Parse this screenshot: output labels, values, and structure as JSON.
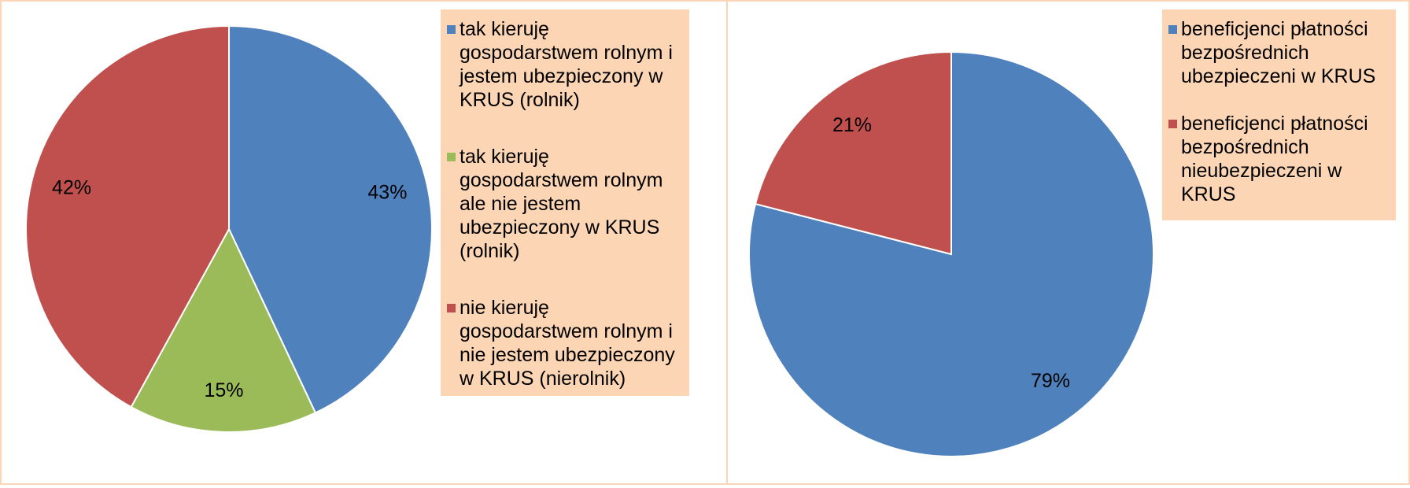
{
  "chart_data": [
    {
      "type": "pie",
      "categories": [
        "tak kieruję gospodarstwem rolnym i jestem ubezpieczony w KRUS (rolnik)",
        "tak kieruję gospodarstwem rolnym ale nie jestem ubezpieczony w KRUS (rolnik)",
        "nie kieruję gospodarstwem rolnym i nie jestem ubezpieczony w KRUS (nierolnik)"
      ],
      "values": [
        43,
        15,
        42
      ],
      "value_labels": [
        "43%",
        "15%",
        "42%"
      ],
      "colors": [
        "#4f81bd",
        "#9bbb59",
        "#c0504d"
      ]
    },
    {
      "type": "pie",
      "categories": [
        "beneficjenci płatności bezpośrednich ubezpieczeni w KRUS",
        "beneficjenci płatności bezpośrednich nieubezpieczeni w KRUS"
      ],
      "values": [
        79,
        21
      ],
      "value_labels": [
        "79%",
        "21%"
      ],
      "colors": [
        "#4f81bd",
        "#c0504d"
      ]
    }
  ]
}
